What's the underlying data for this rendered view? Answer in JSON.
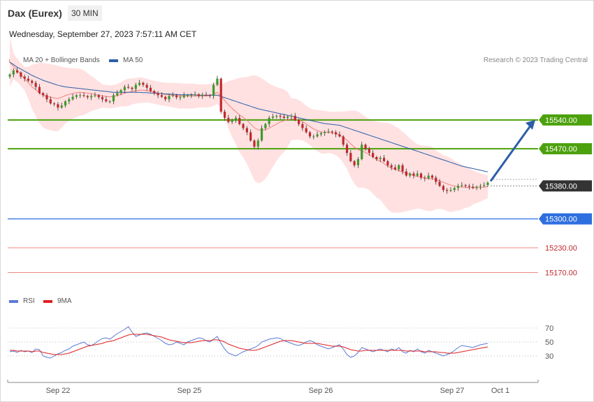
{
  "header": {
    "instrument": "Dax (Eurex)",
    "interval": "30 MIN",
    "datetime": "Wednesday, September 27, 2023 7:57:11 AM CET"
  },
  "legend_main": [
    {
      "label": "MA 20 + Bollinger Bands",
      "color": "#f08080"
    },
    {
      "label": "MA 50",
      "color": "#2d5ea8"
    }
  ],
  "legend_rsi": [
    {
      "label": "RSI",
      "color": "#5b7bd5"
    },
    {
      "label": "9MA",
      "color": "#e02020"
    }
  ],
  "credit": "Research © 2023 Trading Central",
  "colors": {
    "up": "#3d9a2a",
    "down": "#c0282d",
    "resistance": "#4ca10c",
    "support_blue": "#2e6fe0",
    "support_red": "#f08a80",
    "current": "#333333",
    "arrow": "#2d5ea8",
    "band_fill": "#ffe1e1"
  },
  "chart_data": [
    {
      "type": "candlestick",
      "title": "Dax (Eurex)",
      "x_ticks": [
        "Sep 22",
        "Sep 25",
        "Sep 26",
        "Sep 27",
        "Oct 1"
      ],
      "ylim": [
        15120,
        15670
      ],
      "levels": [
        {
          "value": 15540.0,
          "label": "15540.00",
          "kind": "resistance"
        },
        {
          "value": 15470.0,
          "label": "15470.00",
          "kind": "resistance"
        },
        {
          "value": 15380.0,
          "label": "15380.00",
          "kind": "current"
        },
        {
          "value": 15300.0,
          "label": "15300.00",
          "kind": "support_blue"
        },
        {
          "value": 15230.0,
          "label": "15230.00",
          "kind": "support_red"
        },
        {
          "value": 15170.0,
          "label": "15170.00",
          "kind": "support_red"
        }
      ],
      "forecast_target": 15540,
      "close_series": [
        15650,
        15660,
        15655,
        15645,
        15640,
        15635,
        15630,
        15620,
        15605,
        15600,
        15590,
        15580,
        15578,
        15570,
        15575,
        15585,
        15590,
        15596,
        15600,
        15600,
        15598,
        15595,
        15598,
        15600,
        15595,
        15590,
        15585,
        15585,
        15600,
        15605,
        15612,
        15620,
        15618,
        15615,
        15625,
        15630,
        15625,
        15618,
        15610,
        15605,
        15600,
        15596,
        15590,
        15598,
        15600,
        15595,
        15595,
        15600,
        15600,
        15600,
        15602,
        15598,
        15601,
        15600,
        15598,
        15625,
        15640,
        15560,
        15545,
        15535,
        15540,
        15545,
        15530,
        15520,
        15510,
        15490,
        15475,
        15490,
        15520,
        15530,
        15545,
        15548,
        15550,
        15548,
        15545,
        15548,
        15550,
        15540,
        15530,
        15520,
        15510,
        15500,
        15500,
        15505,
        15508,
        15510,
        15512,
        15510,
        15505,
        15500,
        15480,
        15460,
        15440,
        15430,
        15445,
        15480,
        15470,
        15460,
        15450,
        15445,
        15448,
        15440,
        15430,
        15425,
        15420,
        15430,
        15415,
        15405,
        15410,
        15405,
        15410,
        15400,
        15398,
        15405,
        15400,
        15390,
        15380,
        15370,
        15368,
        15370,
        15375,
        15380,
        15382,
        15380,
        15378,
        15375,
        15378,
        15380,
        15382,
        15388
      ],
      "ma20": [
        15680,
        15670,
        15660,
        15650,
        15640,
        15630,
        15620,
        15613,
        15605,
        15600,
        15597,
        15595,
        15593,
        15592,
        15595,
        15599,
        15602,
        15604,
        15606,
        15607,
        15606,
        15605,
        15604,
        15602,
        15600,
        15598,
        15597,
        15596,
        15597,
        15599,
        15602,
        15605,
        15607,
        15609,
        15611,
        15612,
        15612,
        15611,
        15609,
        15607,
        15605,
        15603,
        15602,
        15601,
        15600,
        15599,
        15598,
        15598,
        15598,
        15598,
        15598,
        15598,
        15598,
        15598,
        15599,
        15602,
        15607,
        15597,
        15587,
        15577,
        15568,
        15560,
        15552,
        15546,
        15539,
        15530,
        15521,
        15516,
        15515,
        15516,
        15520,
        15525,
        15530,
        15535,
        15538,
        15541,
        15542,
        15542,
        15540,
        15536,
        15530,
        15524,
        15518,
        15514,
        15511,
        15510,
        15510,
        15509,
        15507,
        15504,
        15498,
        15491,
        15482,
        15474,
        15468,
        15465,
        15461,
        15456,
        15450,
        15444,
        15440,
        15434,
        15428,
        15423,
        15420,
        15417,
        15414,
        15411,
        15408,
        15405,
        15403,
        15401,
        15399,
        15398,
        15397,
        15395,
        15392,
        15389,
        15385,
        15382,
        15380,
        15378,
        15377,
        15377,
        15376,
        15376,
        15376,
        15376,
        15377,
        15378
      ],
      "ma50": [
        15680,
        15674,
        15668,
        15663,
        15658,
        15653,
        15648,
        15644,
        15640,
        15636,
        15633,
        15630,
        15627,
        15624,
        15622,
        15620,
        15619,
        15618,
        15617,
        15616,
        15615,
        15614,
        15613,
        15612,
        15611,
        15610,
        15609,
        15608,
        15607,
        15607,
        15607,
        15607,
        15607,
        15607,
        15607,
        15607,
        15606,
        15606,
        15605,
        15605,
        15604,
        15604,
        15603,
        15603,
        15602,
        15602,
        15601,
        15601,
        15601,
        15601,
        15601,
        15600,
        15600,
        15600,
        15600,
        15600,
        15600,
        15597,
        15594,
        15591,
        15588,
        15585,
        15582,
        15579,
        15576,
        15573,
        15570,
        15567,
        15565,
        15563,
        15561,
        15559,
        15557,
        15555,
        15553,
        15551,
        15549,
        15547,
        15545,
        15543,
        15541,
        15539,
        15537,
        15535,
        15533,
        15531,
        15530,
        15529,
        15528,
        15527,
        15524,
        15521,
        15518,
        15515,
        15512,
        15509,
        15506,
        15503,
        15500,
        15497,
        15494,
        15491,
        15488,
        15485,
        15482,
        15479,
        15476,
        15473,
        15470,
        15467,
        15464,
        15461,
        15458,
        15455,
        15452,
        15449,
        15446,
        15443,
        15440,
        15437,
        15434,
        15431,
        15428,
        15426,
        15424,
        15422,
        15420,
        15418,
        15416,
        15414
      ]
    },
    {
      "type": "line",
      "title": "RSI",
      "ylim": [
        0,
        100
      ],
      "y_ticks": [
        30,
        50,
        70
      ],
      "series": [
        {
          "name": "RSI",
          "values": [
            36,
            37,
            35,
            38,
            36,
            37,
            35,
            40,
            39,
            30,
            28,
            27,
            30,
            33,
            35,
            38,
            40,
            44,
            46,
            48,
            50,
            46,
            45,
            48,
            52,
            55,
            56,
            54,
            58,
            62,
            65,
            68,
            72,
            64,
            58,
            60,
            62,
            63,
            61,
            58,
            55,
            52,
            48,
            46,
            47,
            50,
            48,
            46,
            50,
            52,
            54,
            56,
            55,
            52,
            50,
            54,
            58,
            48,
            40,
            34,
            32,
            30,
            33,
            36,
            38,
            40,
            42,
            45,
            50,
            52,
            54,
            55,
            56,
            55,
            52,
            50,
            48,
            46,
            45,
            47,
            50,
            52,
            50,
            46,
            44,
            42,
            40,
            42,
            44,
            46,
            40,
            32,
            28,
            30,
            35,
            42,
            40,
            38,
            36,
            38,
            40,
            38,
            36,
            40,
            38,
            42,
            36,
            34,
            38,
            36,
            40,
            36,
            34,
            38,
            36,
            34,
            32,
            30,
            32,
            34,
            38,
            42,
            45,
            44,
            43,
            42,
            44,
            46,
            47,
            48
          ]
        },
        {
          "name": "9MA",
          "values": [
            38,
            38,
            37,
            37,
            37,
            37,
            36,
            37,
            37,
            35,
            34,
            33,
            32,
            32,
            32,
            33,
            34,
            36,
            38,
            40,
            42,
            44,
            45,
            46,
            47,
            48,
            50,
            51,
            52,
            54,
            56,
            58,
            60,
            61,
            61,
            61,
            61,
            61,
            60,
            59,
            58,
            57,
            55,
            53,
            52,
            51,
            50,
            49,
            49,
            49,
            50,
            51,
            52,
            52,
            52,
            53,
            53,
            52,
            50,
            47,
            45,
            43,
            41,
            40,
            39,
            38,
            38,
            39,
            41,
            43,
            45,
            47,
            49,
            51,
            52,
            52,
            52,
            51,
            50,
            49,
            48,
            48,
            48,
            48,
            47,
            46,
            45,
            44,
            44,
            44,
            43,
            41,
            39,
            38,
            37,
            37,
            38,
            38,
            38,
            38,
            38,
            38,
            38,
            38,
            38,
            38,
            38,
            37,
            37,
            37,
            37,
            37,
            36,
            36,
            36,
            36,
            35,
            35,
            34,
            34,
            34,
            35,
            36,
            37,
            38,
            39,
            40,
            41,
            42,
            43
          ]
        }
      ]
    }
  ]
}
